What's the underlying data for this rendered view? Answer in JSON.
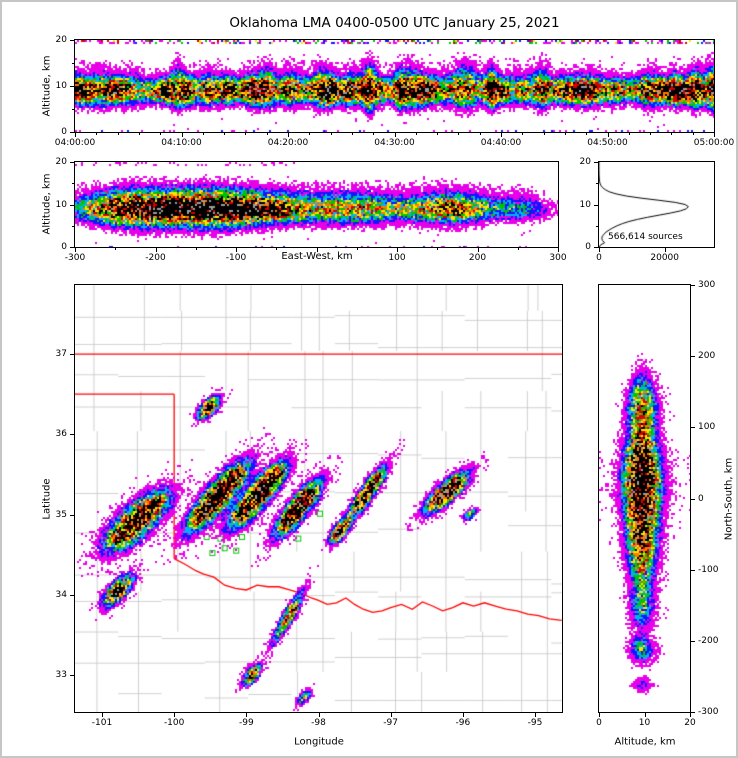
{
  "title": "Oklahoma LMA 0400-0500 UTC January 25, 2021",
  "labels": {
    "altitude_km": "Altitude, km",
    "east_west": "East-West, km",
    "latitude": "Latitude",
    "longitude": "Longitude",
    "north_south": "North-South, km",
    "sources": "566,614 sources"
  },
  "colors": {
    "magenta": "#e800e8",
    "blue": "#1414ff",
    "cyan": "#00b0ff",
    "green": "#00c400",
    "yellow": "#ffe400",
    "orange": "#ff7a00",
    "red": "#d80000",
    "dark_red": "#9a0000",
    "core": "#000000",
    "core_sparkle": "#9e9e9e",
    "state_border": "#ff0000",
    "county": "#c4c4c4",
    "station": "#00cc00",
    "histogram_line": "#000000"
  },
  "chart_data": [
    {
      "id": "time_height",
      "type": "heatmap",
      "ylabel": "Altitude, km",
      "x_range_utc": [
        "04:00:00",
        "05:00:00"
      ],
      "x_tick_labels": [
        "04:00:00",
        "04:10:00",
        "04:20:00",
        "04:30:00",
        "04:40:00",
        "04:50:00",
        "05:00:00"
      ],
      "y_range": [
        0,
        20
      ],
      "y_ticks": [
        0,
        10,
        20
      ],
      "layer_mean_alt_km": 9.2,
      "layer_sigma_km": 1.6,
      "description": "VHF lightning source density vs time; quasi-continuous layer 7-11 km with bursts to 14-18 km; sparse noise rows near 0 km and 20 km"
    },
    {
      "id": "east_west",
      "type": "heatmap",
      "xlabel": "East-West, km",
      "ylabel": "Altitude, km",
      "x_range": [
        -300,
        300
      ],
      "x_ticks": [
        -300,
        -200,
        -100,
        100,
        200,
        300
      ],
      "y_range": [
        0,
        20
      ],
      "y_ticks": [
        0,
        10,
        20
      ],
      "mean_alt_km": 9.0,
      "blobs": [
        [
          -135,
          92,
          1.15
        ],
        [
          -245,
          35,
          0.45
        ],
        [
          55,
          45,
          0.5
        ],
        [
          168,
          40,
          0.7
        ],
        [
          255,
          24,
          0.28
        ]
      ],
      "cores": [
        [
          -195,
          18,
          0.5
        ],
        [
          -148,
          20,
          0.45
        ],
        [
          -95,
          22,
          0.5
        ],
        [
          -55,
          14,
          0.35
        ],
        [
          170,
          14,
          0.2
        ]
      ]
    },
    {
      "id": "histogram",
      "type": "line",
      "x_range": [
        0,
        35000
      ],
      "x_ticks": [
        0,
        20000
      ],
      "y_range": [
        0,
        20
      ],
      "y_ticks": [
        0,
        10,
        20
      ],
      "total_sources": 566614,
      "annotation": "566,614 sources",
      "points_alt_km_count": [
        [
          0,
          100
        ],
        [
          0.5,
          500
        ],
        [
          1,
          1700
        ],
        [
          1.5,
          1100
        ],
        [
          2,
          850
        ],
        [
          2.5,
          1000
        ],
        [
          3,
          1500
        ],
        [
          3.5,
          2100
        ],
        [
          4,
          3100
        ],
        [
          4.5,
          4200
        ],
        [
          5,
          5500
        ],
        [
          5.5,
          7100
        ],
        [
          6,
          9100
        ],
        [
          6.5,
          11700
        ],
        [
          7,
          14800
        ],
        [
          7.5,
          18300
        ],
        [
          8,
          21800
        ],
        [
          8.5,
          24800
        ],
        [
          9,
          26600
        ],
        [
          9.5,
          27200
        ],
        [
          10,
          26200
        ],
        [
          10.5,
          23200
        ],
        [
          11,
          18200
        ],
        [
          11.5,
          12800
        ],
        [
          12,
          8300
        ],
        [
          12.5,
          5200
        ],
        [
          13,
          3100
        ],
        [
          13.5,
          1900
        ],
        [
          14,
          1050
        ],
        [
          14.5,
          580
        ],
        [
          15,
          300
        ],
        [
          15.5,
          160
        ],
        [
          16,
          90
        ],
        [
          17,
          30
        ],
        [
          18,
          8
        ],
        [
          19,
          2
        ],
        [
          20,
          0
        ]
      ]
    },
    {
      "id": "map",
      "type": "scatter",
      "xlabel": "Longitude",
      "ylabel": "Latitude",
      "lon_range": [
        -101.374,
        -94.626
      ],
      "lat_range": [
        32.539,
        37.861
      ],
      "lon_ticks": [
        -101,
        -100,
        -99,
        -98,
        -97,
        -96,
        -95
      ],
      "lat_ticks": [
        33,
        34,
        35,
        36,
        37
      ],
      "counties": {
        "seed": 11
      },
      "state_border": [
        [
          [
            -101.374,
            37
          ],
          [
            -94.626,
            37
          ]
        ],
        [
          [
            -101.374,
            36.5
          ],
          [
            -100,
            36.5
          ]
        ],
        [
          [
            -100,
            36.5
          ],
          [
            -100,
            34.45
          ]
        ],
        [
          [
            -100,
            34.45
          ],
          [
            -99.85,
            34.38
          ],
          [
            -99.7,
            34.3
          ],
          [
            -99.6,
            34.26
          ],
          [
            -99.45,
            34.22
          ],
          [
            -99.3,
            34.12
          ],
          [
            -99.15,
            34.08
          ],
          [
            -99.0,
            34.06
          ],
          [
            -98.85,
            34.12
          ],
          [
            -98.7,
            34.1
          ],
          [
            -98.55,
            34.1
          ],
          [
            -98.4,
            34.06
          ],
          [
            -98.25,
            34.02
          ],
          [
            -98.1,
            33.96
          ],
          [
            -98.0,
            33.93
          ],
          [
            -97.88,
            33.88
          ],
          [
            -97.75,
            33.9
          ],
          [
            -97.62,
            33.96
          ],
          [
            -97.5,
            33.88
          ],
          [
            -97.38,
            33.82
          ],
          [
            -97.25,
            33.78
          ],
          [
            -97.12,
            33.8
          ],
          [
            -97.0,
            33.84
          ],
          [
            -96.85,
            33.88
          ],
          [
            -96.7,
            33.82
          ],
          [
            -96.56,
            33.91
          ],
          [
            -96.42,
            33.86
          ],
          [
            -96.28,
            33.8
          ],
          [
            -96.14,
            33.84
          ],
          [
            -96.0,
            33.9
          ],
          [
            -95.85,
            33.86
          ],
          [
            -95.7,
            33.9
          ],
          [
            -95.55,
            33.86
          ],
          [
            -95.4,
            33.82
          ],
          [
            -95.25,
            33.8
          ],
          [
            -95.1,
            33.76
          ],
          [
            -94.95,
            33.74
          ],
          [
            -94.8,
            33.7
          ],
          [
            -94.63,
            33.68
          ]
        ]
      ],
      "storm_bands": [
        {
          "c": [
            -100.52,
            34.92
          ],
          "a": 45,
          "L": 0.55,
          "W": 0.24,
          "amp": 1.1,
          "cores": [
            -0.5,
            0.05,
            0.55
          ]
        },
        {
          "c": [
            -100.78,
            34.05
          ],
          "a": 50,
          "L": 0.3,
          "W": 0.13,
          "amp": 0.85,
          "cores": [
            0
          ]
        },
        {
          "c": [
            -99.4,
            35.22
          ],
          "a": 52,
          "L": 0.6,
          "W": 0.18,
          "amp": 1.3,
          "cores": [
            -0.45,
            0.1,
            0.55
          ]
        },
        {
          "c": [
            -98.84,
            35.24
          ],
          "a": 52,
          "L": 0.55,
          "W": 0.17,
          "amp": 1.25,
          "cores": [
            -0.5,
            0.1,
            0.6
          ]
        },
        {
          "c": [
            -98.28,
            35.08
          ],
          "a": 54,
          "L": 0.48,
          "W": 0.15,
          "amp": 1.2,
          "cores": [
            -0.4,
            0.3
          ]
        },
        {
          "c": [
            -97.33,
            35.26
          ],
          "a": 58,
          "L": 0.45,
          "W": 0.1,
          "amp": 1.0,
          "cores": [
            -0.3,
            0.4
          ]
        },
        {
          "c": [
            -96.22,
            35.28
          ],
          "a": 45,
          "L": 0.4,
          "W": 0.14,
          "amp": 1.05,
          "cores": [
            -0.3,
            0.35
          ]
        },
        {
          "c": [
            -97.7,
            34.8
          ],
          "a": 55,
          "L": 0.22,
          "W": 0.09,
          "amp": 0.8,
          "cores": [
            0
          ]
        },
        {
          "c": [
            -98.42,
            33.72
          ],
          "a": 62,
          "L": 0.45,
          "W": 0.08,
          "amp": 0.7,
          "cores": [
            0.2
          ]
        },
        {
          "c": [
            -98.92,
            33.0
          ],
          "a": 55,
          "L": 0.2,
          "W": 0.08,
          "amp": 0.65,
          "cores": [
            0
          ]
        },
        {
          "c": [
            -98.2,
            32.72
          ],
          "a": 50,
          "L": 0.14,
          "W": 0.07,
          "amp": 0.55,
          "cores": []
        },
        {
          "c": [
            -99.52,
            36.33
          ],
          "a": 48,
          "L": 0.2,
          "W": 0.1,
          "amp": 0.85,
          "cores": [
            0
          ]
        },
        {
          "c": [
            -95.9,
            35.0
          ],
          "a": 45,
          "L": 0.12,
          "W": 0.07,
          "amp": 0.55,
          "cores": []
        }
      ],
      "stations": [
        [
          -99.62,
          35.0
        ],
        [
          -99.45,
          34.88
        ],
        [
          -99.55,
          34.72
        ],
        [
          -99.36,
          34.7
        ],
        [
          -99.25,
          34.82
        ],
        [
          -99.3,
          34.58
        ],
        [
          -99.14,
          34.55
        ],
        [
          -99.47,
          34.52
        ],
        [
          -99.06,
          34.72
        ],
        [
          -97.98,
          35.01
        ],
        [
          -98.28,
          34.7
        ]
      ]
    },
    {
      "id": "north_south",
      "type": "heatmap",
      "xlabel": "Altitude, km",
      "ylabel": "North-South, km",
      "x_range": [
        0,
        20
      ],
      "x_ticks": [
        0,
        10,
        20
      ],
      "y_range": [
        -300,
        300
      ],
      "y_ticks": [
        300,
        200,
        100,
        0,
        -100,
        -200,
        -300
      ],
      "mean_alt_km": 9.3,
      "lobes": [
        [
          25,
          55,
          1.3
        ],
        [
          135,
          26,
          0.5
        ],
        [
          -80,
          38,
          0.55
        ],
        [
          -155,
          20,
          0.32
        ],
        [
          -212,
          13,
          0.38
        ],
        [
          -262,
          7,
          0.18
        ]
      ]
    }
  ]
}
